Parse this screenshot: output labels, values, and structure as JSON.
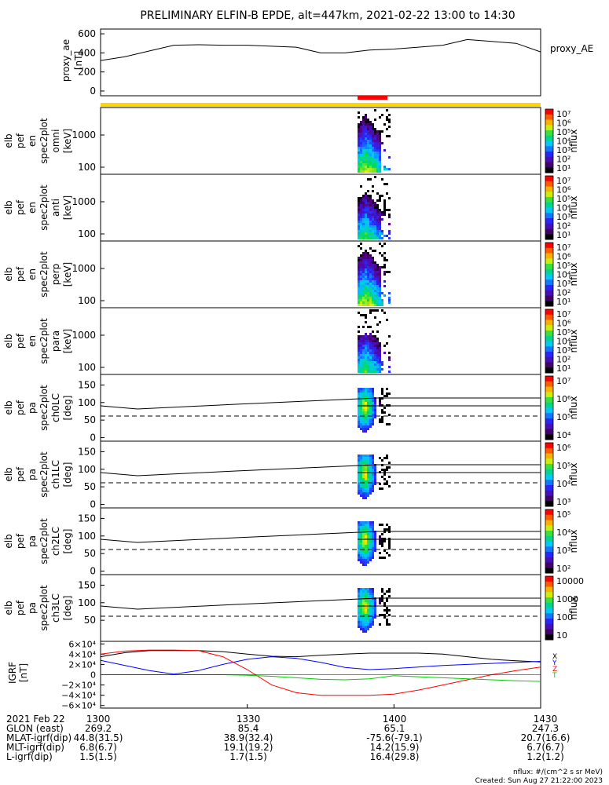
{
  "title": "PRELIMINARY ELFIN-B EPDE, alt=447km, 2021-02-22 13:00 to 14:30",
  "colors": {
    "yellow_bar": "#ffd700",
    "red_bar": "#ff0000",
    "igrf_x": "#000000",
    "igrf_y": "#0000ff",
    "igrf_z": "#ff0000",
    "igrf_t": "#00cc00"
  },
  "chart_data": [
    {
      "type": "line",
      "ylabel": "proxy_ae [nT]",
      "legend": "proxy_AE",
      "ylim": [
        -50,
        650
      ],
      "yticks": [
        "600",
        "400",
        "200",
        "0"
      ],
      "x": [
        0,
        5,
        10,
        15,
        20,
        25,
        30,
        35,
        40,
        45,
        50,
        55,
        60,
        65,
        70,
        75,
        80,
        85,
        90
      ],
      "values": [
        320,
        360,
        420,
        480,
        485,
        480,
        480,
        470,
        460,
        400,
        400,
        430,
        440,
        460,
        480,
        540,
        520,
        500,
        410
      ]
    },
    {
      "type": "heatmap",
      "ylabel": [
        "elb",
        "pef",
        "en",
        "spec2plot",
        "omni",
        "[keV]"
      ],
      "yticks": [
        "1000",
        "100"
      ],
      "cb_ticks": [
        "10⁷",
        "10⁶",
        "10⁵",
        "10⁴",
        "10³",
        "10²",
        "10¹"
      ],
      "cb_label": "nflux"
    },
    {
      "type": "heatmap",
      "ylabel": [
        "elb",
        "pef",
        "en",
        "spec2plot",
        "anti",
        "[keV]"
      ],
      "yticks": [
        "1000",
        "100"
      ],
      "cb_ticks": [
        "10⁷",
        "10⁶",
        "10⁵",
        "10⁴",
        "10³",
        "10²",
        "10¹"
      ],
      "cb_label": "nflux"
    },
    {
      "type": "heatmap",
      "ylabel": [
        "elb",
        "pef",
        "en",
        "spec2plot",
        "perp",
        "[keV]"
      ],
      "yticks": [
        "1000",
        "100"
      ],
      "cb_ticks": [
        "10⁷",
        "10⁶",
        "10⁵",
        "10⁴",
        "10³",
        "10²",
        "10¹"
      ],
      "cb_label": "nflux"
    },
    {
      "type": "heatmap",
      "ylabel": [
        "elb",
        "pef",
        "en",
        "spec2plot",
        "para",
        "[keV]"
      ],
      "yticks": [
        "1000",
        "100"
      ],
      "cb_ticks": [
        "10⁷",
        "10⁶",
        "10⁵",
        "10⁴",
        "10³",
        "10²",
        "10¹"
      ],
      "cb_label": "nflux"
    },
    {
      "type": "heatmap",
      "ylabel": [
        "elb",
        "pef",
        "pa",
        "spec2plot",
        "ch0LC",
        "[deg]"
      ],
      "yticks": [
        "150",
        "100",
        "50",
        "0"
      ],
      "cb_ticks": [
        "10⁷",
        "10⁶",
        "10⁵",
        "10⁴"
      ],
      "cb_label": "nflux"
    },
    {
      "type": "heatmap",
      "ylabel": [
        "elb",
        "pef",
        "pa",
        "spec2plot",
        "ch1LC",
        "[deg]"
      ],
      "yticks": [
        "150",
        "100",
        "50",
        "0"
      ],
      "cb_ticks": [
        "10⁶",
        "10⁵",
        "10⁴",
        "10³"
      ],
      "cb_label": "nflux"
    },
    {
      "type": "heatmap",
      "ylabel": [
        "elb",
        "pef",
        "pa",
        "spec2plot",
        "ch2LC",
        "[deg]"
      ],
      "yticks": [
        "150",
        "100",
        "50",
        "0"
      ],
      "cb_ticks": [
        "10⁵",
        "10⁴",
        "10³",
        "10²"
      ],
      "cb_label": "nflux"
    },
    {
      "type": "heatmap",
      "ylabel": [
        "elb",
        "pef",
        "pa",
        "spec2plot",
        "ch3LC",
        "[deg]"
      ],
      "yticks": [
        "150",
        "100",
        "50"
      ],
      "cb_ticks": [
        "10000",
        "1000",
        "100",
        "10"
      ],
      "cb_label": "nflux"
    },
    {
      "type": "line",
      "ylabel": "IGRF [nT]",
      "yticks": [
        "6×10⁴",
        "4×10⁴",
        "2×10⁴",
        "0",
        "−2×10⁴",
        "−4×10⁴",
        "−6×10⁴"
      ],
      "ylim": [
        -65000,
        65000
      ],
      "x": [
        0,
        5,
        10,
        15,
        20,
        25,
        30,
        35,
        40,
        45,
        50,
        55,
        60,
        65,
        70,
        75,
        80,
        85,
        90
      ],
      "series": [
        {
          "name": "X",
          "values": [
            35000,
            43000,
            47000,
            47000,
            47000,
            45000,
            40000,
            36000,
            35000,
            38000,
            40000,
            42000,
            42000,
            42000,
            40000,
            35000,
            30000,
            27000,
            25000
          ]
        },
        {
          "name": "Y",
          "values": [
            28000,
            18000,
            8000,
            1000,
            8000,
            20000,
            30000,
            35000,
            32000,
            24000,
            14000,
            10000,
            12000,
            15000,
            18000,
            20000,
            22000,
            24000,
            26000
          ]
        },
        {
          "name": "Z",
          "values": [
            40000,
            46000,
            48000,
            48000,
            47000,
            35000,
            10000,
            -20000,
            -35000,
            -40000,
            -40000,
            -40000,
            -38000,
            -30000,
            -20000,
            -10000,
            0,
            8000,
            15000
          ]
        },
        {
          "name": "T",
          "values": [
            0,
            0,
            0,
            0,
            0,
            0,
            -1000,
            -3000,
            -6000,
            -9000,
            -10000,
            -8000,
            -2000,
            -4000,
            -6000,
            -8000,
            -10000,
            -12000,
            -13000
          ]
        }
      ],
      "legend_labels": [
        "X",
        "Y",
        "Z",
        "T"
      ]
    }
  ],
  "footer": {
    "rows": [
      {
        "label": "2021 Feb 22",
        "values": [
          "1300",
          "1330",
          "1400",
          "1430"
        ]
      },
      {
        "label": "GLON (east)",
        "values": [
          "269.2",
          "85.4",
          "65.1",
          "247.3"
        ]
      },
      {
        "label": "MLAT-igrf(dip)",
        "values": [
          "44.8(31.5)",
          "38.9(32.4)",
          "-75.6(-79.1)",
          "20.7(16.6)"
        ]
      },
      {
        "label": "MLT-igrf(dip)",
        "values": [
          "6.8(6.7)",
          "19.1(19.2)",
          "14.2(15.9)",
          "6.7(6.7)"
        ]
      },
      {
        "label": "L-igrf(dip)",
        "values": [
          "1.5(1.5)",
          "1.7(1.5)",
          "16.4(29.8)",
          "1.2(1.2)"
        ]
      }
    ],
    "units_note": "nflux: #/(cm^2 s sr MeV)",
    "created": "Created: Sun Aug 27 21:22:00 2023"
  }
}
